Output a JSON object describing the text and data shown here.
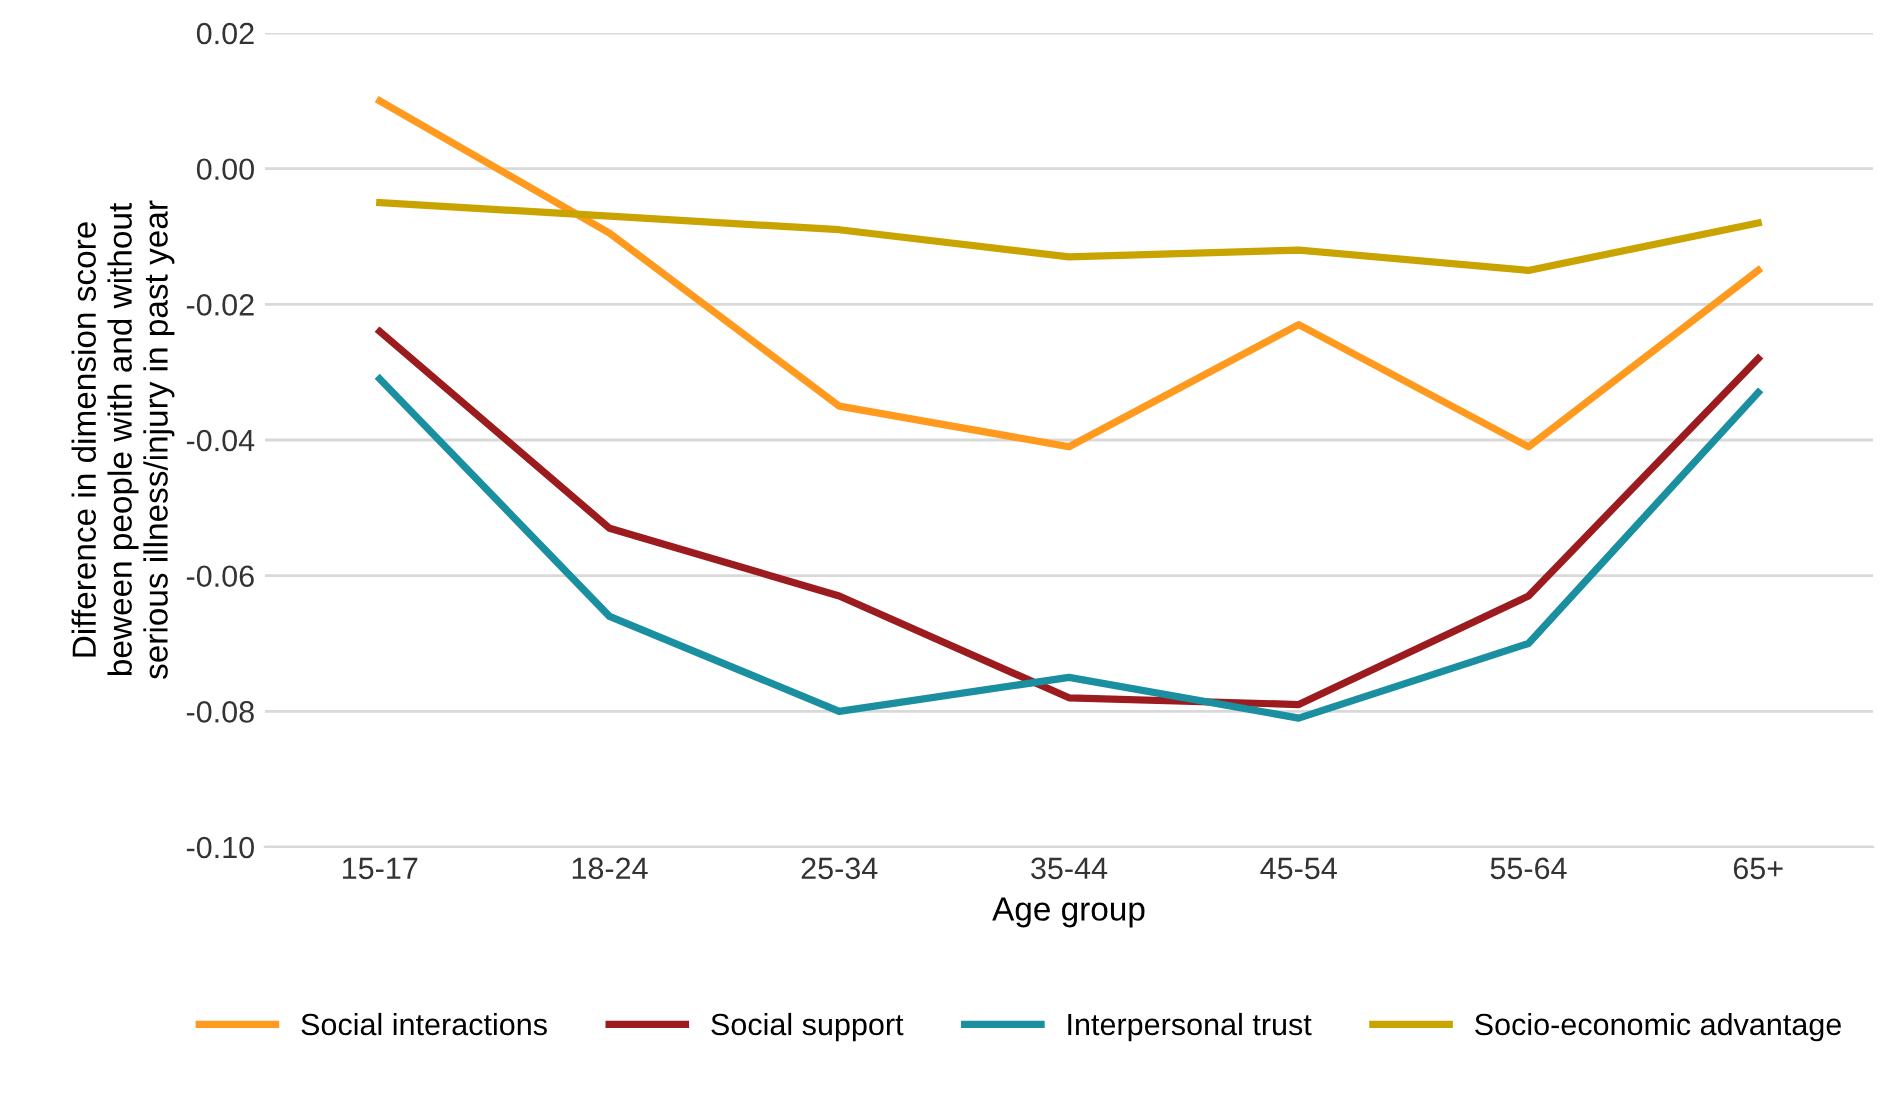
{
  "chart_data": {
    "type": "line",
    "xlabel": "Age group",
    "ylabel": "Difference in dimension score\nbeween people with and without\nserious illness/injury in past year",
    "categories": [
      "15-17",
      "18-24",
      "25-34",
      "35-44",
      "45-54",
      "55-64",
      "65+"
    ],
    "series": [
      {
        "name": "Social interactions",
        "color": "#ff9a1f",
        "values": [
          0.01,
          -0.0095,
          -0.035,
          -0.041,
          -0.023,
          -0.041,
          -0.015
        ]
      },
      {
        "name": "Social support",
        "color": "#9b1b1e",
        "values": [
          -0.024,
          -0.053,
          -0.063,
          -0.078,
          -0.079,
          -0.063,
          -0.028
        ]
      },
      {
        "name": "Interpersonal trust",
        "color": "#1a8fa0",
        "values": [
          -0.031,
          -0.066,
          -0.08,
          -0.075,
          -0.081,
          -0.07,
          -0.033
        ]
      },
      {
        "name": "Socio-economic advantage",
        "color": "#c9a300",
        "values": [
          -0.005,
          -0.007,
          -0.009,
          -0.013,
          -0.012,
          -0.015,
          -0.008
        ]
      }
    ],
    "ylim": [
      -0.1,
      0.02
    ],
    "yticks": [
      {
        "value": -0.1,
        "label": "-0.10"
      },
      {
        "value": -0.08,
        "label": "-0.08"
      },
      {
        "value": -0.06,
        "label": "-0.06"
      },
      {
        "value": -0.04,
        "label": "-0.04"
      },
      {
        "value": -0.02,
        "label": "-0.02"
      },
      {
        "value": 0.0,
        "label": "0.00"
      },
      {
        "value": 0.02,
        "label": "0.02"
      }
    ],
    "grid": "y",
    "legend": "bottom",
    "marker": "none",
    "line_style": "solid"
  }
}
